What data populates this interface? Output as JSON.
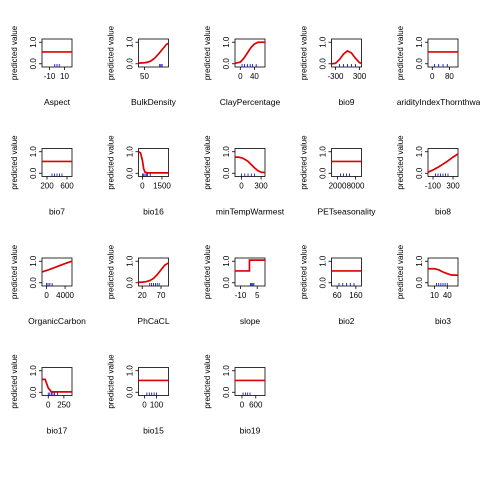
{
  "chart_data": [
    {
      "type": "line",
      "xlabel": "Aspect",
      "ylabel": "predicted value",
      "xlim": [
        -20,
        20
      ],
      "ylim": [
        -0.15,
        1.15
      ],
      "xticks": [
        -10,
        10
      ],
      "yticks": [
        0.0,
        1.0
      ],
      "x": [
        -20,
        20
      ],
      "y": [
        0.55,
        0.55
      ],
      "rug": [
        -3,
        0,
        3
      ],
      "line_color": "#dd0000",
      "rug_color": "#0000cc"
    },
    {
      "type": "line",
      "xlabel": "BulkDensity",
      "ylabel": "predicted value",
      "xlim": [
        35,
        110
      ],
      "ylim": [
        -0.15,
        1.15
      ],
      "xticks": [
        50
      ],
      "yticks": [
        0.0,
        1.0
      ],
      "x": [
        35,
        45,
        55,
        65,
        75,
        85,
        95,
        105,
        110
      ],
      "y": [
        0.03,
        0.04,
        0.06,
        0.12,
        0.25,
        0.45,
        0.68,
        0.9,
        0.95
      ],
      "rug": [
        88,
        91,
        94
      ],
      "line_color": "#dd0000",
      "rug_color": "#0000cc"
    },
    {
      "type": "line",
      "xlabel": "ClayPercentage",
      "ylabel": "predicted value",
      "xlim": [
        -15,
        70
      ],
      "ylim": [
        -0.15,
        1.15
      ],
      "xticks": [
        0,
        40
      ],
      "yticks": [
        0.0,
        1.0
      ],
      "x": [
        -15,
        0,
        10,
        20,
        30,
        40,
        50,
        60,
        70
      ],
      "y": [
        0.02,
        0.08,
        0.25,
        0.5,
        0.75,
        0.92,
        1.0,
        1.0,
        1.0
      ],
      "rug": [
        5,
        12,
        20,
        28,
        35,
        45
      ],
      "line_color": "#dd0000",
      "rug_color": "#0000cc"
    },
    {
      "type": "line",
      "xlabel": "bio9",
      "ylabel": "predicted value",
      "xlim": [
        -400,
        350
      ],
      "ylim": [
        -0.15,
        1.15
      ],
      "xticks": [
        -300,
        300
      ],
      "yticks": [
        0.0,
        1.0
      ],
      "x": [
        -400,
        -300,
        -200,
        -100,
        0,
        100,
        200,
        300,
        350
      ],
      "y": [
        0.0,
        0.02,
        0.2,
        0.45,
        0.6,
        0.5,
        0.25,
        0.05,
        0.02
      ],
      "rug": [
        -200,
        -100,
        0,
        100,
        200
      ],
      "line_color": "#dd0000",
      "rug_color": "#0000cc"
    },
    {
      "type": "line",
      "xlabel": "aridityIndexThornthwaite",
      "ylabel": "predicted value",
      "xlim": [
        -20,
        120
      ],
      "ylim": [
        -0.15,
        1.15
      ],
      "xticks": [
        0,
        80
      ],
      "yticks": [
        0.0,
        1.0
      ],
      "x": [
        -20,
        120
      ],
      "y": [
        0.55,
        0.55
      ],
      "rug": [
        10,
        30,
        50,
        70
      ],
      "line_color": "#dd0000",
      "rug_color": "#0000cc"
    },
    {
      "type": "line",
      "xlabel": "bio7",
      "ylabel": "predicted value",
      "xlim": [
        100,
        700
      ],
      "ylim": [
        -0.15,
        1.15
      ],
      "xticks": [
        200,
        600
      ],
      "yticks": [
        0.0,
        1.0
      ],
      "x": [
        100,
        700
      ],
      "y": [
        0.55,
        0.55
      ],
      "rug": [
        300,
        350,
        400,
        450,
        500
      ],
      "line_color": "#dd0000",
      "rug_color": "#0000cc"
    },
    {
      "type": "line",
      "xlabel": "bio16",
      "ylabel": "predicted value",
      "xlim": [
        -300,
        2000
      ],
      "ylim": [
        -0.15,
        1.15
      ],
      "xticks": [
        0,
        1500
      ],
      "yticks": [
        0.0,
        1.0
      ],
      "x": [
        -300,
        -150,
        0,
        100,
        200,
        400,
        700,
        2000
      ],
      "y": [
        1.0,
        0.95,
        0.6,
        0.2,
        0.05,
        0.02,
        0.02,
        0.02
      ],
      "rug": [
        0,
        100,
        200,
        300,
        400,
        600
      ],
      "line_color": "#dd0000",
      "rug_color": "#0000cc"
    },
    {
      "type": "line",
      "xlabel": "minTempWarmest",
      "ylabel": "predicted value",
      "xlim": [
        -100,
        360
      ],
      "ylim": [
        -0.15,
        1.15
      ],
      "xticks": [
        0,
        300
      ],
      "yticks": [
        0.0,
        1.0
      ],
      "x": [
        -100,
        -50,
        0,
        50,
        100,
        150,
        200,
        250,
        300,
        360
      ],
      "y": [
        0.75,
        0.75,
        0.72,
        0.65,
        0.55,
        0.4,
        0.25,
        0.12,
        0.05,
        0.03
      ],
      "rug": [
        0,
        50,
        100,
        150,
        200
      ],
      "line_color": "#dd0000",
      "rug_color": "#0000cc"
    },
    {
      "type": "line",
      "xlabel": "PETseasonality",
      "ylabel": "predicted value",
      "xlim": [
        0,
        10000
      ],
      "ylim": [
        -0.15,
        1.15
      ],
      "xticks": [
        2000,
        8000
      ],
      "yticks": [
        0.0,
        1.0
      ],
      "x": [
        0,
        10000
      ],
      "y": [
        0.55,
        0.55
      ],
      "rug": [
        3000,
        4000,
        5000,
        6000
      ],
      "line_color": "#dd0000",
      "rug_color": "#0000cc"
    },
    {
      "type": "line",
      "xlabel": "bio8",
      "ylabel": "predicted value",
      "xlim": [
        -200,
        400
      ],
      "ylim": [
        -0.15,
        1.15
      ],
      "xticks": [
        -100,
        300
      ],
      "yticks": [
        0.0,
        1.0
      ],
      "x": [
        -200,
        -100,
        0,
        100,
        200,
        300,
        400
      ],
      "y": [
        0.05,
        0.15,
        0.28,
        0.42,
        0.58,
        0.75,
        0.9
      ],
      "rug": [
        -50,
        0,
        50,
        100,
        150,
        200
      ],
      "line_color": "#dd0000",
      "rug_color": "#0000cc"
    },
    {
      "type": "line",
      "xlabel": "OrganicCarbon",
      "ylabel": "predicted value",
      "xlim": [
        -1000,
        5500
      ],
      "ylim": [
        -0.15,
        1.15
      ],
      "xticks": [
        0,
        4000
      ],
      "yticks": [
        0.0,
        1.0
      ],
      "x": [
        -1000,
        0,
        1000,
        2000,
        3000,
        4000,
        5500
      ],
      "y": [
        0.5,
        0.57,
        0.65,
        0.73,
        0.81,
        0.89,
        1.0
      ],
      "rug": [
        0,
        300,
        700,
        1200
      ],
      "line_color": "#dd0000",
      "rug_color": "#0000cc"
    },
    {
      "type": "line",
      "xlabel": "PhCaCL",
      "ylabel": "predicted value",
      "xlim": [
        10,
        90
      ],
      "ylim": [
        -0.15,
        1.15
      ],
      "xticks": [
        20,
        70
      ],
      "yticks": [
        0.0,
        1.0
      ],
      "x": [
        10,
        20,
        30,
        40,
        50,
        60,
        70,
        80,
        90
      ],
      "y": [
        0.02,
        0.03,
        0.05,
        0.1,
        0.2,
        0.38,
        0.6,
        0.82,
        0.92
      ],
      "rug": [
        40,
        45,
        50,
        55,
        60,
        65
      ],
      "line_color": "#dd0000",
      "rug_color": "#0000cc"
    },
    {
      "type": "line",
      "xlabel": "slope",
      "ylabel": "predicted value",
      "xlim": [
        -15,
        12
      ],
      "ylim": [
        -0.15,
        1.15
      ],
      "xticks": [
        -10,
        5
      ],
      "yticks": [
        0.0,
        1.0
      ],
      "x": [
        -15,
        -2,
        -2,
        12
      ],
      "y": [
        0.55,
        0.55,
        1.05,
        1.05
      ],
      "rug": [
        -1,
        0,
        1,
        2
      ],
      "line_color": "#dd0000",
      "rug_color": "#0000cc"
    },
    {
      "type": "line",
      "xlabel": "bio2",
      "ylabel": "predicted value",
      "xlim": [
        30,
        190
      ],
      "ylim": [
        -0.15,
        1.15
      ],
      "xticks": [
        60,
        160
      ],
      "yticks": [
        0.0,
        1.0
      ],
      "x": [
        30,
        190
      ],
      "y": [
        0.55,
        0.55
      ],
      "rug": [
        70,
        90,
        110,
        130,
        150
      ],
      "line_color": "#dd0000",
      "rug_color": "#0000cc"
    },
    {
      "type": "line",
      "xlabel": "bio3",
      "ylabel": "predicted value",
      "xlim": [
        -5,
        65
      ],
      "ylim": [
        -0.15,
        1.15
      ],
      "xticks": [
        10,
        40
      ],
      "yticks": [
        0.0,
        1.0
      ],
      "x": [
        -5,
        10,
        20,
        30,
        40,
        50,
        65
      ],
      "y": [
        0.65,
        0.65,
        0.6,
        0.5,
        0.42,
        0.36,
        0.35
      ],
      "rug": [
        15,
        20,
        25,
        30,
        35,
        40
      ],
      "line_color": "#dd0000",
      "rug_color": "#0000cc"
    },
    {
      "type": "line",
      "xlabel": "bio17",
      "ylabel": "predicted value",
      "xlim": [
        -100,
        380
      ],
      "ylim": [
        -0.15,
        1.15
      ],
      "xticks": [
        0,
        250
      ],
      "yticks": [
        0.0,
        1.0
      ],
      "x": [
        -100,
        -50,
        0,
        50,
        100,
        200,
        380
      ],
      "y": [
        0.6,
        0.6,
        0.2,
        0.02,
        0.02,
        0.02,
        0.02
      ],
      "rug": [
        0,
        25,
        50,
        75,
        100,
        150
      ],
      "line_color": "#dd0000",
      "rug_color": "#0000cc"
    },
    {
      "type": "line",
      "xlabel": "bio15",
      "ylabel": "predicted value",
      "xlim": [
        -50,
        200
      ],
      "ylim": [
        -0.15,
        1.15
      ],
      "xticks": [
        0,
        100
      ],
      "yticks": [
        0.0,
        1.0
      ],
      "x": [
        -50,
        200
      ],
      "y": [
        0.55,
        0.55
      ],
      "rug": [
        20,
        40,
        60,
        80,
        100
      ],
      "line_color": "#dd0000",
      "rug_color": "#0000cc"
    },
    {
      "type": "line",
      "xlabel": "bio19",
      "ylabel": "predicted value",
      "xlim": [
        -300,
        1000
      ],
      "ylim": [
        -0.15,
        1.15
      ],
      "xticks": [
        0,
        600
      ],
      "yticks": [
        0.0,
        1.0
      ],
      "x": [
        -300,
        1000
      ],
      "y": [
        0.55,
        0.55
      ],
      "rug": [
        50,
        150,
        250,
        350
      ],
      "line_color": "#dd0000",
      "rug_color": "#0000cc"
    }
  ]
}
